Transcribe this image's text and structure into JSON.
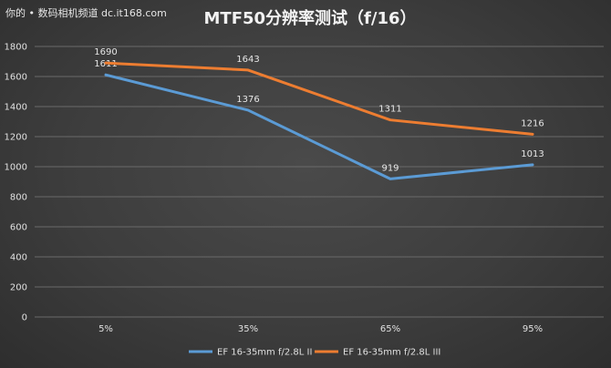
{
  "watermark": "你的 • 数码相机频道 dc.it168.com",
  "chart_data": {
    "type": "line",
    "title": "MTF50分辨率测试（f/16）",
    "categories": [
      "5%",
      "35%",
      "65%",
      "95%"
    ],
    "ylim": [
      0,
      1800
    ],
    "yticks": [
      0,
      200,
      400,
      600,
      800,
      1000,
      1200,
      1400,
      1600,
      1800
    ],
    "grid": true,
    "legend_position": "bottom",
    "series": [
      {
        "name": "EF 16-35mm f/2.8L II",
        "color": "#5b9bd5",
        "values": [
          1611,
          1376,
          919,
          1013
        ]
      },
      {
        "name": "EF 16-35mm f/2.8L III",
        "color": "#ed7d31",
        "values": [
          1690,
          1643,
          1311,
          1216
        ]
      }
    ]
  }
}
